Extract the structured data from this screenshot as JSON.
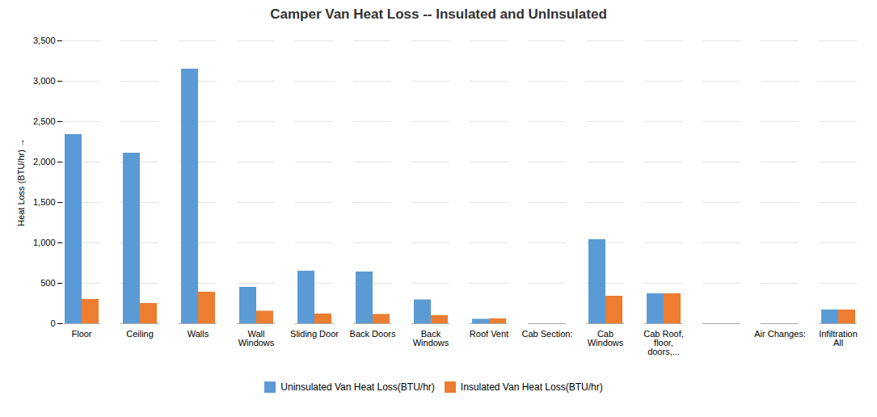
{
  "chart_data": {
    "type": "bar",
    "title": "Camper Van Heat Loss -- Insulated and UnInsulated",
    "ylabel": "Heat Loss (BTU/hr)",
    "categories": [
      "Floor",
      "Ceiling",
      "Walls",
      "Wall\nWindows",
      "Sliding Door",
      "Back Doors",
      "Back\nWindows",
      "Roof Vent",
      "Cab Section:",
      "Cab\nWindows",
      "Cab Roof,\nfloor,\ndoors,...",
      null,
      "Air Changes:",
      "Infiltration\nAll"
    ],
    "series": [
      {
        "name": "Uninsulated Van Heat Loss(BTU/hr)",
        "color": "#5B9BD5",
        "values": [
          2340,
          2110,
          3150,
          450,
          650,
          640,
          295,
          55,
          0,
          1040,
          370,
          0,
          0,
          170
        ]
      },
      {
        "name": "Insulated Van Heat Loss(BTU/hr)",
        "color": "#ED7D31",
        "values": [
          300,
          250,
          390,
          155,
          120,
          115,
          100,
          60,
          0,
          340,
          370,
          0,
          0,
          170
        ]
      }
    ],
    "ylim": [
      0,
      3500
    ],
    "yticks": [
      0,
      500,
      1000,
      1500,
      2000,
      2500,
      3000,
      3500
    ],
    "grid": true,
    "legend": "bottom"
  }
}
